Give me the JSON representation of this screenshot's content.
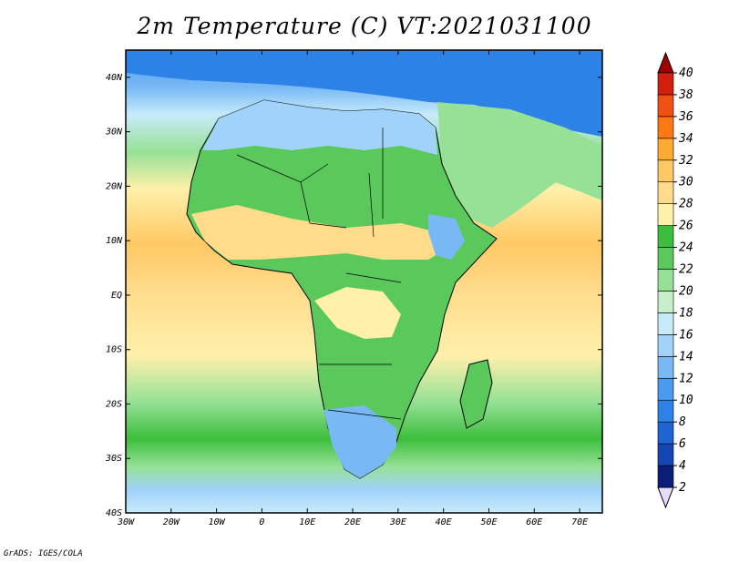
{
  "title": "2m Temperature (C) VT:2021031100",
  "credit": "GrADS: IGES/COLA",
  "map": {
    "variable": "2m Temperature",
    "units": "C",
    "valid_time": "2021031100",
    "lon_range": [
      -30,
      75
    ],
    "lat_range": [
      -40,
      45
    ],
    "lon_ticks": [
      "30W",
      "20W",
      "10W",
      "0",
      "10E",
      "20E",
      "30E",
      "40E",
      "50E",
      "60E",
      "70E"
    ],
    "lat_ticks": [
      "40N",
      "30N",
      "20N",
      "10N",
      "EQ",
      "10S",
      "20S",
      "30S",
      "40S"
    ]
  },
  "colorbar": {
    "levels": [
      2,
      4,
      6,
      8,
      10,
      12,
      14,
      16,
      18,
      20,
      22,
      24,
      26,
      28,
      30,
      32,
      34,
      36,
      38,
      40
    ],
    "labels": [
      "40",
      "38",
      "36",
      "34",
      "32",
      "30",
      "28",
      "26",
      "24",
      "22",
      "20",
      "18",
      "16",
      "14",
      "12",
      "10",
      "8",
      "6",
      "4",
      "2"
    ],
    "colors": [
      "#e6dcff",
      "#0a1e78",
      "#1446b4",
      "#1e64d2",
      "#2d82e6",
      "#4a9bf0",
      "#78b9f5",
      "#a0d2fa",
      "#c8ebfa",
      "#c8f0c8",
      "#96e196",
      "#5ac85a",
      "#3cbe3c",
      "#fff0aa",
      "#ffdc8c",
      "#ffc864",
      "#ffaa32",
      "#ff7814",
      "#f05014",
      "#d21e0a",
      "#b40a0a"
    ],
    "triangle_top_color": "#a00000",
    "triangle_bottom_color": "#e6dcff"
  }
}
